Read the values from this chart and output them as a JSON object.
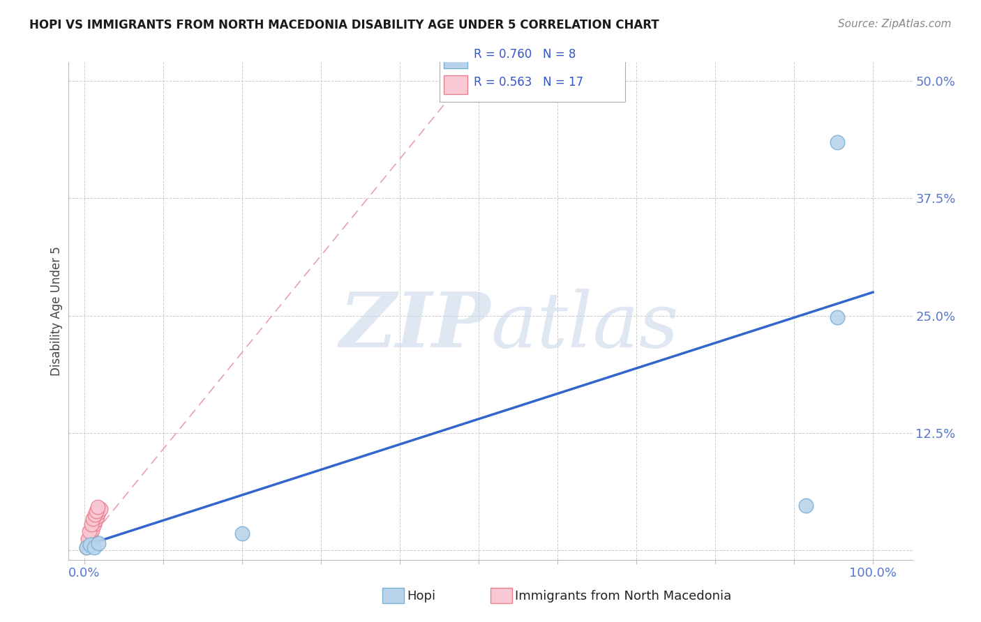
{
  "title": "HOPI VS IMMIGRANTS FROM NORTH MACEDONIA DISABILITY AGE UNDER 5 CORRELATION CHART",
  "source": "Source: ZipAtlas.com",
  "ylabel": "Disability Age Under 5",
  "xlim": [
    -0.02,
    1.05
  ],
  "ylim": [
    -0.01,
    0.52
  ],
  "xticks": [
    0.0,
    0.1,
    0.2,
    0.3,
    0.4,
    0.5,
    0.6,
    0.7,
    0.8,
    0.9,
    1.0
  ],
  "yticks": [
    0.0,
    0.125,
    0.25,
    0.375,
    0.5
  ],
  "xticklabels": [
    "0.0%",
    "",
    "",
    "",
    "",
    "",
    "",
    "",
    "",
    "",
    "100.0%"
  ],
  "yticklabels": [
    "",
    "12.5%",
    "25.0%",
    "37.5%",
    "50.0%"
  ],
  "hopi_points_x": [
    0.003,
    0.007,
    0.012,
    0.018,
    0.2,
    0.915,
    0.955,
    0.955
  ],
  "hopi_points_y": [
    0.003,
    0.006,
    0.003,
    0.008,
    0.018,
    0.048,
    0.248,
    0.435
  ],
  "hopi_color": "#b8d4ec",
  "hopi_edge_color": "#7aafd4",
  "immig_points_x": [
    0.003,
    0.005,
    0.007,
    0.008,
    0.01,
    0.012,
    0.014,
    0.016,
    0.018,
    0.02,
    0.004,
    0.006,
    0.009,
    0.011,
    0.013,
    0.015,
    0.017
  ],
  "immig_points_y": [
    0.003,
    0.008,
    0.014,
    0.018,
    0.022,
    0.028,
    0.032,
    0.036,
    0.04,
    0.044,
    0.012,
    0.02,
    0.028,
    0.034,
    0.038,
    0.042,
    0.046
  ],
  "immig_color": "#f8c8d4",
  "immig_edge_color": "#e88090",
  "hopi_R": 0.76,
  "hopi_N": 8,
  "immig_R": 0.563,
  "immig_N": 17,
  "blue_line_x": [
    0.0,
    1.0
  ],
  "blue_line_y": [
    0.005,
    0.275
  ],
  "pink_line_x": [
    0.0,
    0.5
  ],
  "pink_line_y": [
    0.005,
    0.52
  ],
  "background_color": "#ffffff",
  "grid_color": "#cccccc",
  "tick_color": "#5577cc",
  "legend_text_color": "#3355cc"
}
